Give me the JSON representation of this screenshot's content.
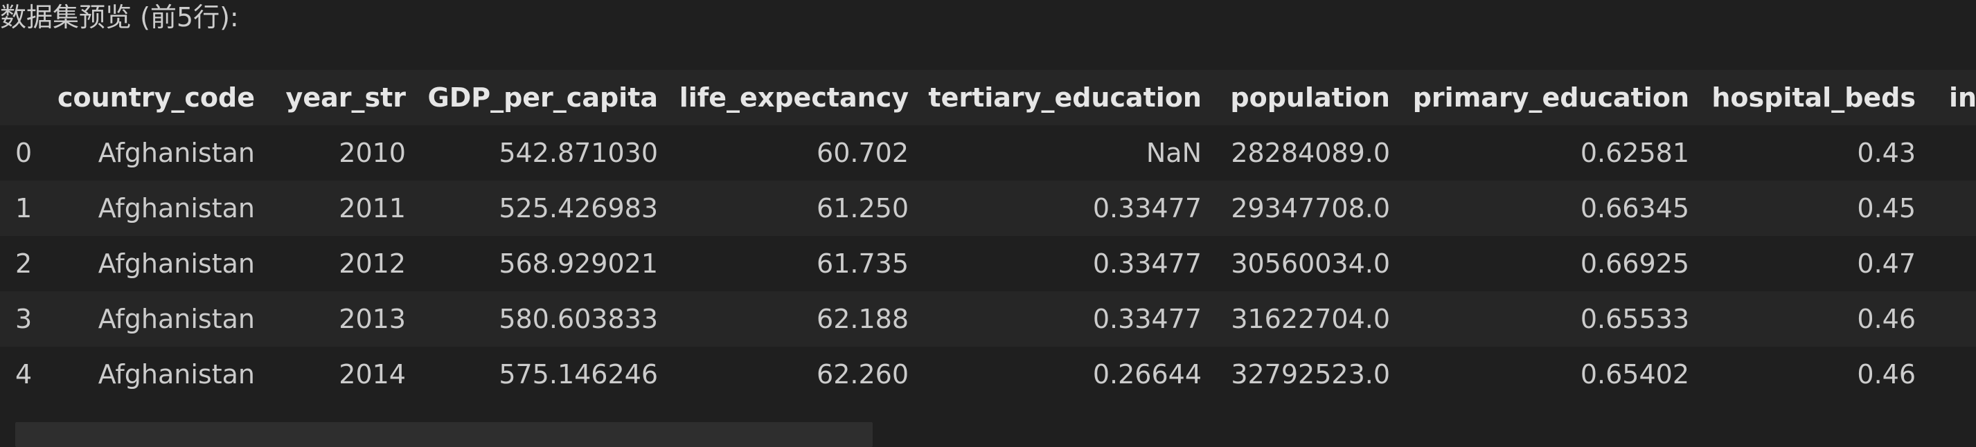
{
  "output": {
    "title": "数据集预览 (前5行):"
  },
  "table": {
    "columns": [
      "",
      "country_code",
      "year_str",
      "GDP_per_capita",
      "life_expectancy",
      "tertiary_education",
      "population",
      "primary_education",
      "hospital_beds",
      "int"
    ],
    "rows": [
      [
        "0",
        "Afghanistan",
        "2010",
        "542.871030",
        "60.702",
        "NaN",
        "28284089.0",
        "0.62581",
        "0.43",
        ""
      ],
      [
        "1",
        "Afghanistan",
        "2011",
        "525.426983",
        "61.250",
        "0.33477",
        "29347708.0",
        "0.66345",
        "0.45",
        ""
      ],
      [
        "2",
        "Afghanistan",
        "2012",
        "568.929021",
        "61.735",
        "0.33477",
        "30560034.0",
        "0.66925",
        "0.47",
        ""
      ],
      [
        "3",
        "Afghanistan",
        "2013",
        "580.603833",
        "62.188",
        "0.33477",
        "31622704.0",
        "0.65533",
        "0.46",
        ""
      ],
      [
        "4",
        "Afghanistan",
        "2014",
        "575.146246",
        "62.260",
        "0.26644",
        "32792523.0",
        "0.65402",
        "0.46",
        ""
      ]
    ]
  },
  "colors": {
    "background": "#1f1f1f",
    "row_alt": "#262626",
    "text": "#cccccc",
    "header_text": "#e6e6e6"
  }
}
